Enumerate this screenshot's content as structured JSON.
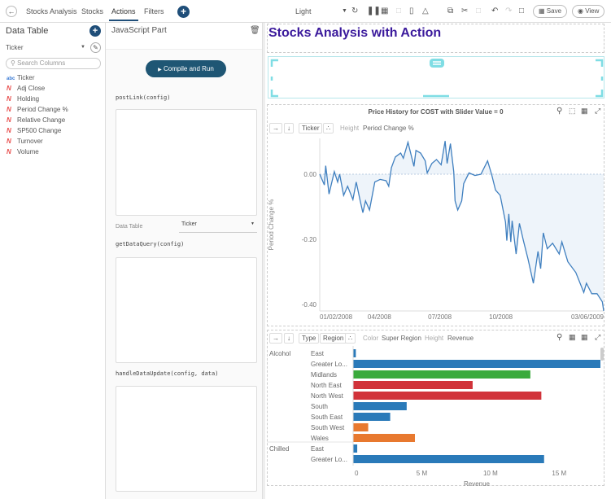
{
  "topbar": {
    "back_icon": "arrow-left-icon",
    "tabs": [
      {
        "label": "Stocks Analysis"
      },
      {
        "label": "Stocks"
      },
      {
        "label": "Actions"
      },
      {
        "label": "Filters"
      }
    ],
    "theme": "Light",
    "save_label": "Save",
    "view_label": "View"
  },
  "data_table": {
    "title": "Data Table",
    "selected_table": "Ticker",
    "search_placeholder": "Search Columns",
    "columns": [
      {
        "type": "abc",
        "name": "Ticker"
      },
      {
        "type": "N",
        "name": "Adj Close"
      },
      {
        "type": "N",
        "name": "Holding"
      },
      {
        "type": "N",
        "name": "Period Change %"
      },
      {
        "type": "N",
        "name": "Relative Change"
      },
      {
        "type": "N",
        "name": "SP500 Change"
      },
      {
        "type": "N",
        "name": "Turnover"
      },
      {
        "type": "N",
        "name": "Volume"
      }
    ]
  },
  "js_part": {
    "title": "JavaScript Part",
    "compile_label": "Compile and Run",
    "post_link": "postLink(config)",
    "data_table_label": "Data Table",
    "data_table_value": "Ticker",
    "get_data_query": "getDataQuery(config)",
    "handle_data_update": "handleDataUpdate(config, data)"
  },
  "dashboard": {
    "title": "Stocks Analysis with Action",
    "title_color": "#3b1a9c"
  },
  "line_panel": {
    "ticker_chip": "Ticker",
    "height_label": "Height",
    "height_value": "Period Change %"
  },
  "bar_panel": {
    "type_chip": "Type",
    "region_chip": "Region",
    "color_label": "Color",
    "color_value": "Super Region",
    "height_label": "Height",
    "height_value": "Revenue"
  },
  "chart_data": [
    {
      "type": "line",
      "title": "Price History for COST with Slider Value = 0",
      "ylabel": "Period Change %",
      "xlabel": "",
      "x_unit": "days since 01/02/2008",
      "xlim": [
        0,
        428
      ],
      "ylim": [
        -0.42,
        0.11
      ],
      "yticks": [
        {
          "v": 0,
          "label": "0.00"
        },
        {
          "v": -0.2,
          "label": "-0.20"
        },
        {
          "v": -0.4,
          "label": "-0.40"
        }
      ],
      "xticks": [
        {
          "v": 0,
          "label": "01/02/2008"
        },
        {
          "v": 90,
          "label": "04/2008"
        },
        {
          "v": 181,
          "label": "07/2008"
        },
        {
          "v": 273,
          "label": "10/2008"
        },
        {
          "v": 428,
          "label": "03/06/2009"
        }
      ],
      "color": "#3f7fbf",
      "series": [
        {
          "name": "COST",
          "points": [
            [
              0,
              0
            ],
            [
              7,
              -0.033
            ],
            [
              9,
              0.026
            ],
            [
              14,
              -0.061
            ],
            [
              22,
              0.008
            ],
            [
              27,
              -0.024
            ],
            [
              30,
              0
            ],
            [
              36,
              -0.065
            ],
            [
              42,
              -0.037
            ],
            [
              50,
              -0.078
            ],
            [
              55,
              -0.024
            ],
            [
              61,
              -0.082
            ],
            [
              65,
              -0.118
            ],
            [
              69,
              -0.082
            ],
            [
              75,
              -0.11
            ],
            [
              83,
              -0.024
            ],
            [
              91,
              -0.016
            ],
            [
              100,
              -0.02
            ],
            [
              104,
              -0.037
            ],
            [
              108,
              0.02
            ],
            [
              114,
              0.053
            ],
            [
              122,
              0.065
            ],
            [
              126,
              0.049
            ],
            [
              133,
              0.098
            ],
            [
              142,
              0.024
            ],
            [
              145,
              0.073
            ],
            [
              152,
              0.065
            ],
            [
              159,
              0.041
            ],
            [
              162,
              0.004
            ],
            [
              169,
              0.033
            ],
            [
              176,
              0.045
            ],
            [
              183,
              0.029
            ],
            [
              189,
              0.102
            ],
            [
              192,
              0.033
            ],
            [
              197,
              0.094
            ],
            [
              202,
              0.008
            ],
            [
              204,
              -0.082
            ],
            [
              208,
              -0.11
            ],
            [
              214,
              -0.082
            ],
            [
              217,
              -0.029
            ],
            [
              225,
              0.004
            ],
            [
              234,
              -0.004
            ],
            [
              243,
              0
            ],
            [
              253,
              0.041
            ],
            [
              259,
              0
            ],
            [
              265,
              -0.049
            ],
            [
              272,
              -0.065
            ],
            [
              280,
              -0.147
            ],
            [
              282,
              -0.204
            ],
            [
              285,
              -0.122
            ],
            [
              288,
              -0.208
            ],
            [
              290,
              -0.143
            ],
            [
              296,
              -0.245
            ],
            [
              301,
              -0.151
            ],
            [
              307,
              -0.204
            ],
            [
              314,
              -0.261
            ],
            [
              322,
              -0.335
            ],
            [
              329,
              -0.237
            ],
            [
              333,
              -0.29
            ],
            [
              337,
              -0.18
            ],
            [
              343,
              -0.229
            ],
            [
              351,
              -0.212
            ],
            [
              361,
              -0.245
            ],
            [
              365,
              -0.208
            ],
            [
              374,
              -0.269
            ],
            [
              386,
              -0.302
            ],
            [
              398,
              -0.363
            ],
            [
              402,
              -0.335
            ],
            [
              410,
              -0.367
            ],
            [
              418,
              -0.367
            ],
            [
              426,
              -0.392
            ],
            [
              428,
              -0.42
            ]
          ]
        }
      ]
    },
    {
      "type": "bar",
      "orientation": "horizontal",
      "xlabel": "Revenue",
      "xlim": [
        0,
        18
      ],
      "xunit": "M",
      "xticks": [
        {
          "v": 0,
          "label": "0"
        },
        {
          "v": 5,
          "label": "5 M"
        },
        {
          "v": 10,
          "label": "10 M"
        },
        {
          "v": 15,
          "label": "15 M"
        }
      ],
      "legend_colors": {
        "blue": "#2a7ab9",
        "green": "#3aaa3c",
        "red": "#d1333a",
        "orange": "#e8792f"
      },
      "groups": [
        {
          "name": "Alcohol",
          "bars": [
            {
              "label": "East",
              "value": 0.2,
              "color": "#2a7ab9"
            },
            {
              "label": "Greater Lo...",
              "value": 18.0,
              "color": "#2a7ab9"
            },
            {
              "label": "Midlands",
              "value": 12.9,
              "color": "#3aaa3c"
            },
            {
              "label": "North East",
              "value": 8.7,
              "color": "#d1333a"
            },
            {
              "label": "North West",
              "value": 13.7,
              "color": "#d1333a"
            },
            {
              "label": "South",
              "value": 3.9,
              "color": "#2a7ab9"
            },
            {
              "label": "South East",
              "value": 2.7,
              "color": "#2a7ab9"
            },
            {
              "label": "South West",
              "value": 1.1,
              "color": "#e8792f"
            },
            {
              "label": "Wales",
              "value": 4.5,
              "color": "#e8792f"
            }
          ]
        },
        {
          "name": "Chilled",
          "bars": [
            {
              "label": "East",
              "value": 0.3,
              "color": "#2a7ab9"
            },
            {
              "label": "Greater Lo...",
              "value": 13.9,
              "color": "#2a7ab9"
            }
          ]
        }
      ]
    }
  ]
}
